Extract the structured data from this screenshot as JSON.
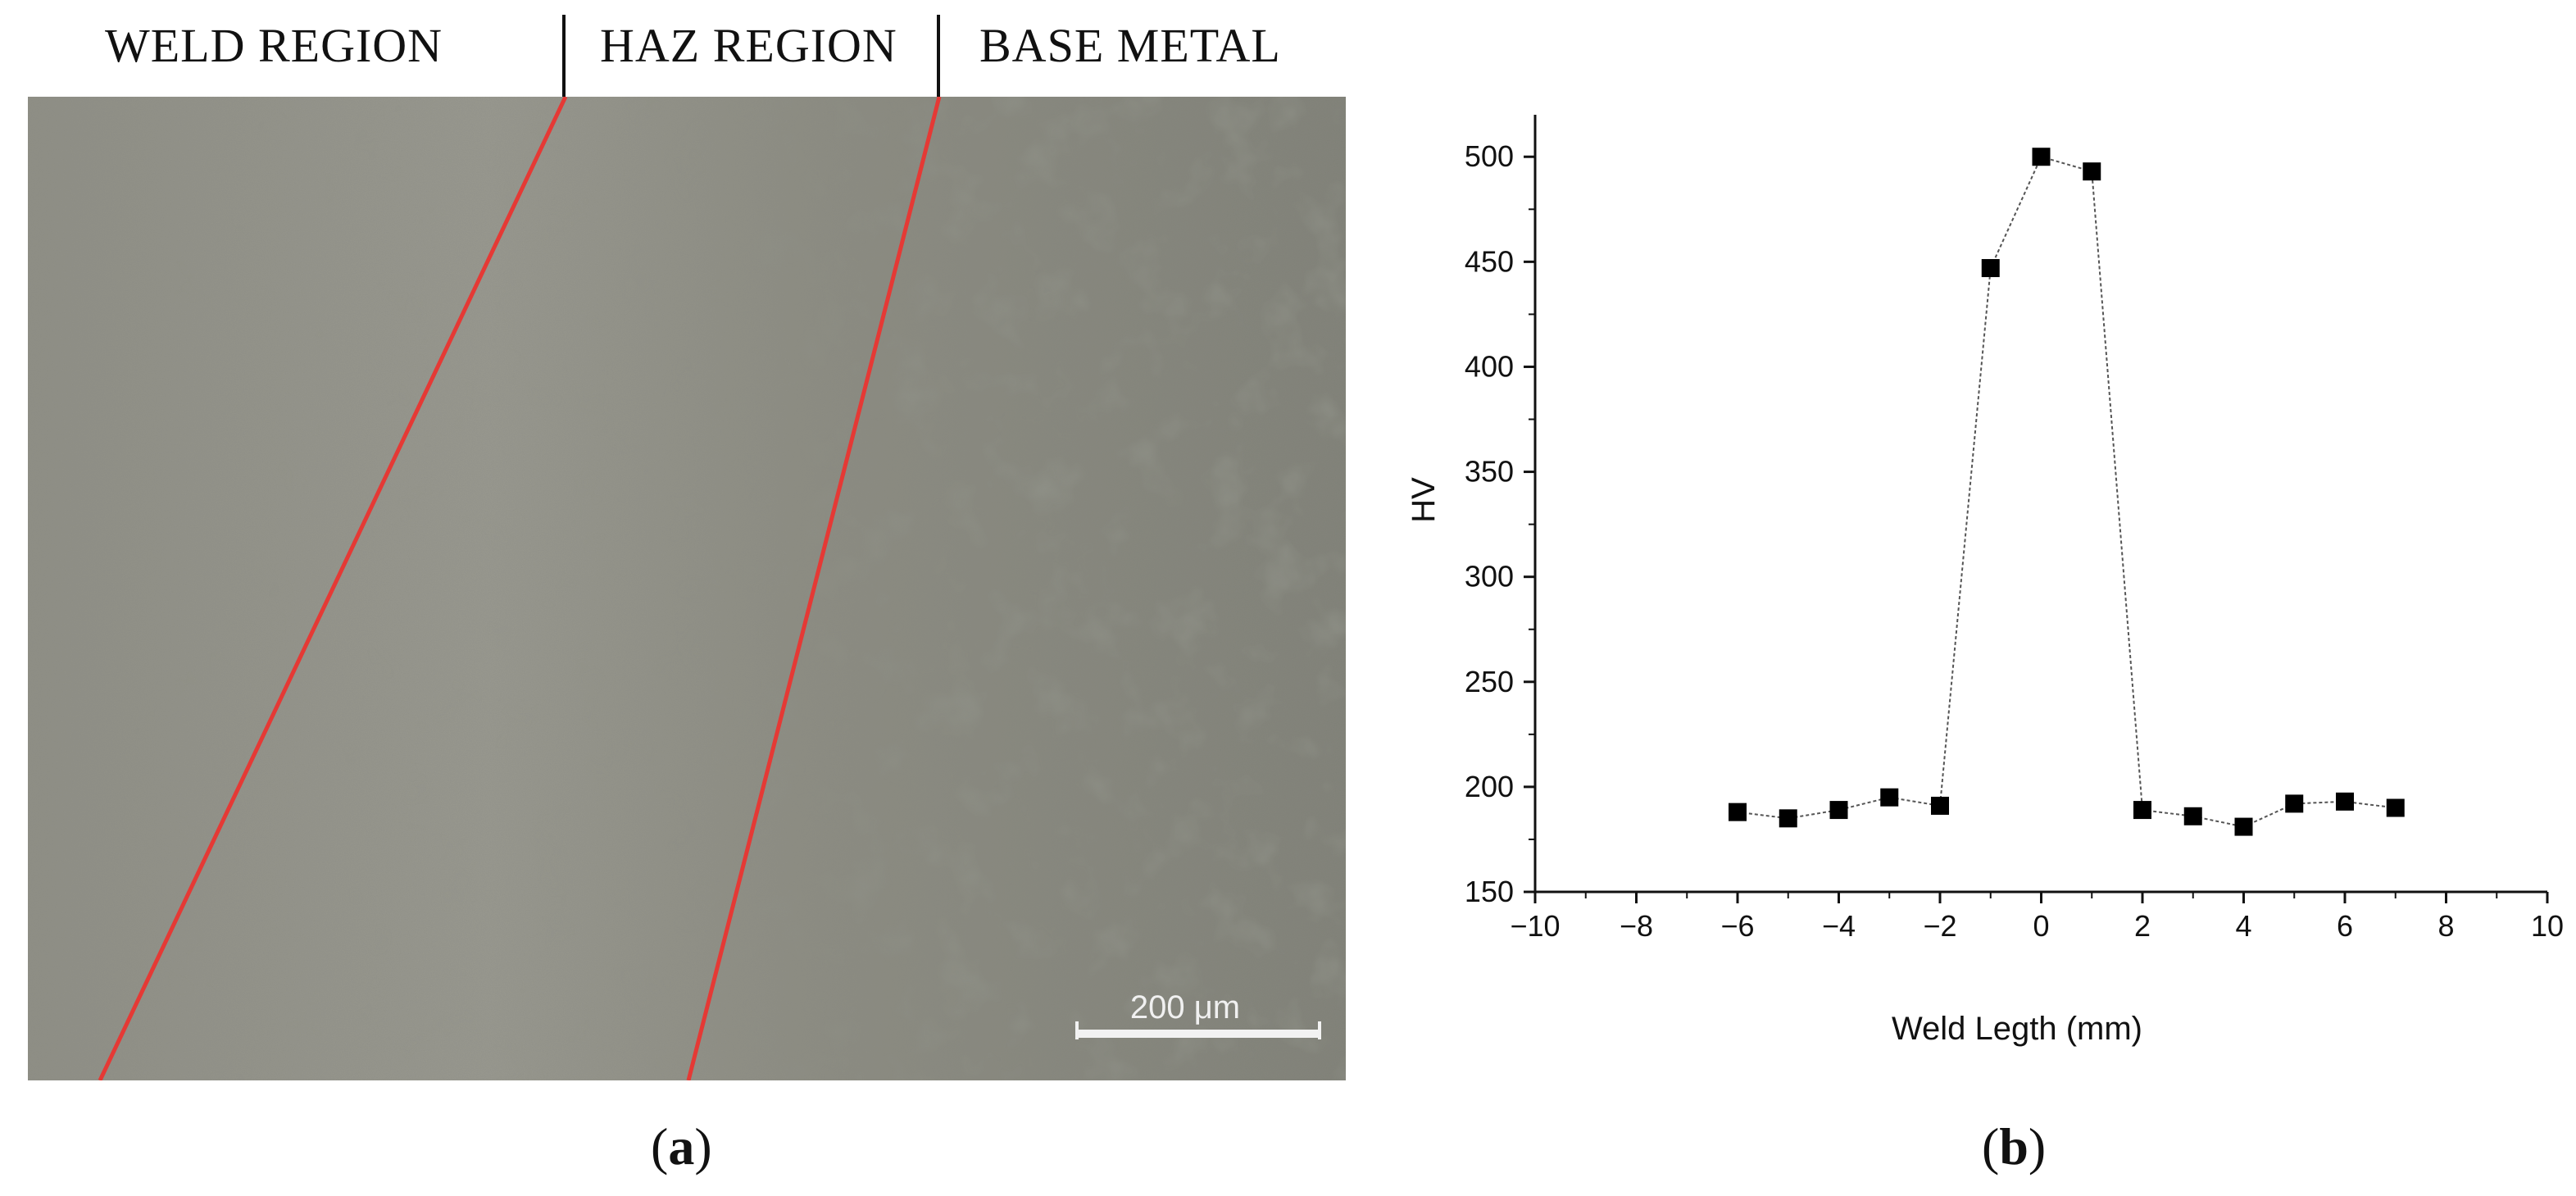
{
  "panel_a": {
    "labels": {
      "weld": "WELD REGION",
      "haz": "HAZ REGION",
      "base": "BASE METAL"
    },
    "scale_bar": "200 μm",
    "boundary_color": "#e53935"
  },
  "panel_letters": {
    "a": "a",
    "b": "b"
  },
  "chart_data": {
    "type": "scatter",
    "xlabel": "Weld Legth (mm)",
    "ylabel": "HV",
    "xlim": [
      -10,
      10
    ],
    "ylim": [
      150,
      520
    ],
    "xticks": [
      -10,
      -8,
      -6,
      -4,
      -2,
      0,
      2,
      4,
      6,
      8,
      10
    ],
    "yticks": [
      150,
      200,
      250,
      300,
      350,
      400,
      450,
      500
    ],
    "xtick_labels": [
      "−10",
      "−8",
      "−6",
      "−4",
      "−2",
      "0",
      "2",
      "4",
      "6",
      "8",
      "10"
    ],
    "ytick_labels": [
      "150",
      "200",
      "250",
      "300",
      "350",
      "400",
      "450",
      "500"
    ],
    "series": [
      {
        "x": [
          -6,
          -5,
          -4,
          -3,
          -2,
          -1,
          0,
          1,
          2,
          3,
          4,
          5,
          6,
          7
        ],
        "y": [
          188,
          185,
          189,
          195,
          191,
          447,
          500,
          493,
          189,
          186,
          181,
          192,
          193,
          190
        ],
        "marker": "square",
        "color": "#000000",
        "line": "dotted"
      }
    ],
    "grid": false
  }
}
